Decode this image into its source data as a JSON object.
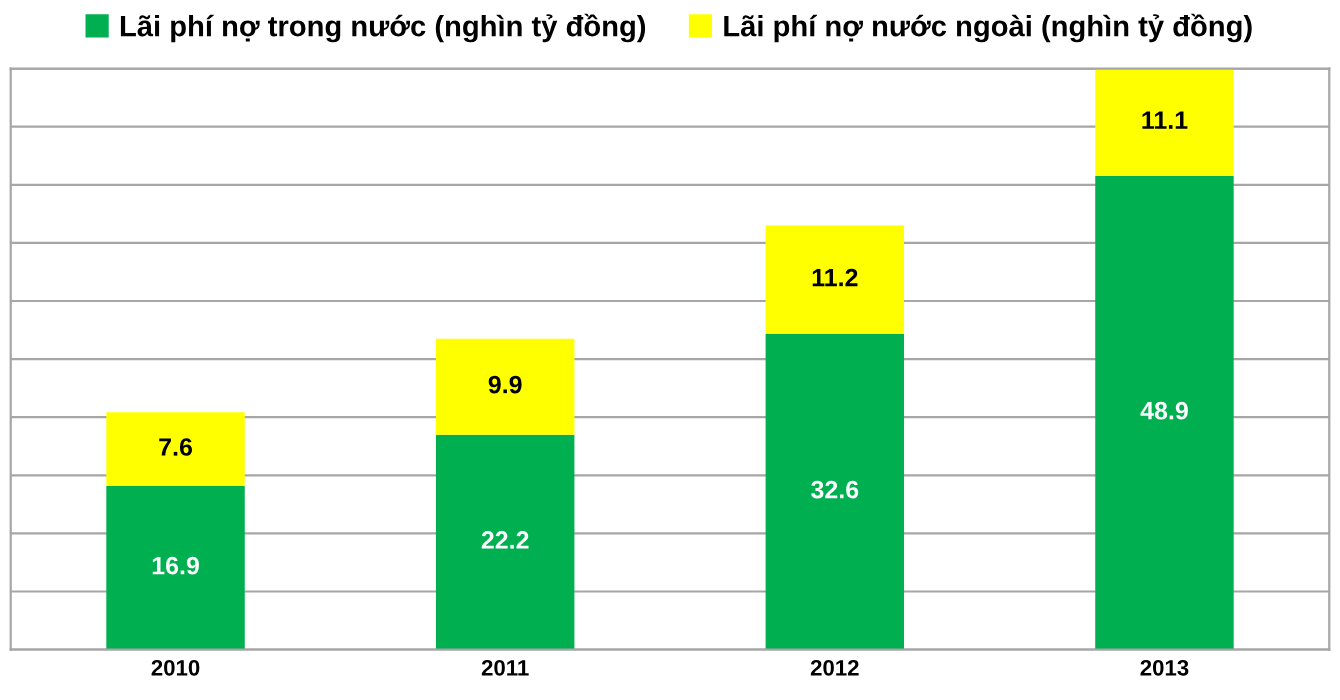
{
  "chart_data": {
    "type": "bar",
    "stacked": true,
    "categories": [
      "2010",
      "2011",
      "2012",
      "2013"
    ],
    "series": [
      {
        "name": "Lãi phí nợ trong nước (nghìn tỷ đồng)",
        "color": "#00b050",
        "values": [
          16.9,
          22.2,
          32.6,
          48.9
        ]
      },
      {
        "name": "Lãi phí nợ nước ngoài (nghìn tỷ đồng)",
        "color": "#ffff00",
        "values": [
          7.6,
          9.9,
          11.2,
          11.1
        ]
      }
    ],
    "data_labels": true,
    "grid": "y",
    "legend": "top"
  }
}
